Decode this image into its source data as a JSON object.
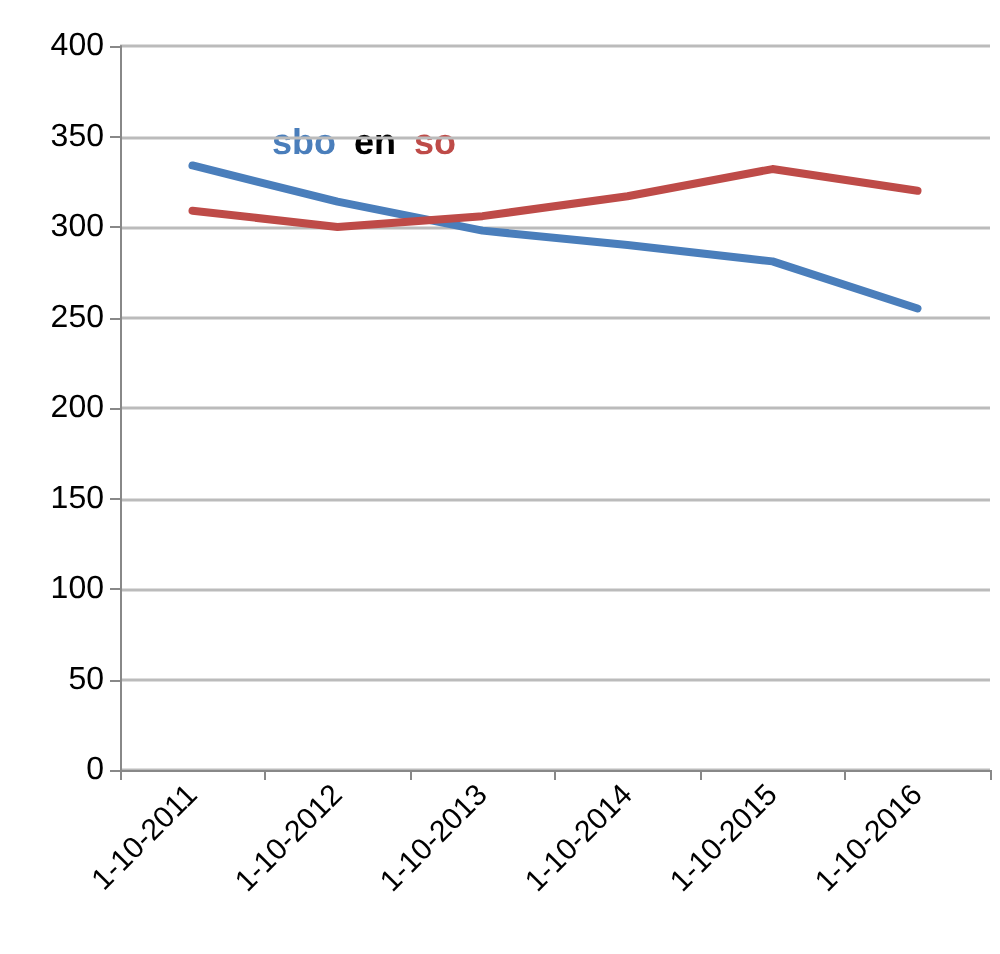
{
  "chart_data": {
    "type": "line",
    "categories": [
      "1-10-2011",
      "1-10-2012",
      "1-10-2013",
      "1-10-2014",
      "1-10-2015",
      "1-10-2016"
    ],
    "series": [
      {
        "name": "sbo",
        "color": "#4a7ebb",
        "values": [
          334,
          314,
          298,
          290,
          281,
          255
        ]
      },
      {
        "name": "so",
        "color": "#be4b48",
        "values": [
          309,
          300,
          306,
          317,
          332,
          320
        ]
      }
    ],
    "annotations": [
      "en"
    ],
    "ylim": [
      0,
      400
    ],
    "yticks": [
      0,
      50,
      100,
      150,
      200,
      250,
      300,
      350,
      400
    ],
    "grid": "y",
    "marker": "none",
    "line_style": "solid"
  }
}
